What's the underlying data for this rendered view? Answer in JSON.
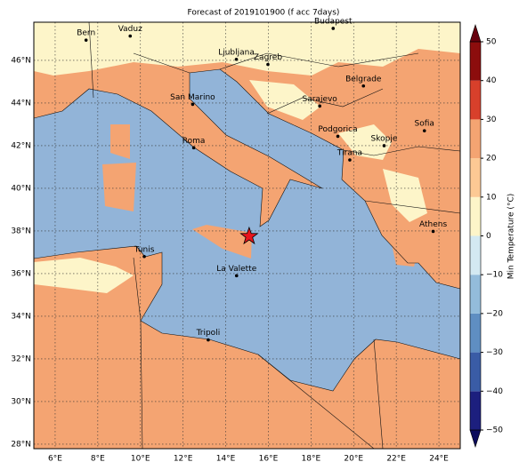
{
  "title": "Forecast of 2019101900 (f acc 7days)",
  "map": {
    "xlim": [
      5,
      25
    ],
    "ylim": [
      27.79,
      47.79
    ],
    "grid": true,
    "land_color": "#f4a472",
    "sea_color": "#92b4d8",
    "cold_land_color": "#fdf5c9",
    "xticks": [
      {
        "value": 6,
        "label": "6°E"
      },
      {
        "value": 8,
        "label": "8°E"
      },
      {
        "value": 10,
        "label": "10°E"
      },
      {
        "value": 12,
        "label": "12°E"
      },
      {
        "value": 14,
        "label": "14°E"
      },
      {
        "value": 16,
        "label": "16°E"
      },
      {
        "value": 18,
        "label": "18°E"
      },
      {
        "value": 20,
        "label": "20°E"
      },
      {
        "value": 22,
        "label": "22°E"
      },
      {
        "value": 24,
        "label": "24°E"
      }
    ],
    "yticks": [
      {
        "value": 28,
        "label": "28°N"
      },
      {
        "value": 30,
        "label": "30°N"
      },
      {
        "value": 32,
        "label": "32°N"
      },
      {
        "value": 34,
        "label": "34°N"
      },
      {
        "value": 36,
        "label": "36°N"
      },
      {
        "value": 38,
        "label": "38°N"
      },
      {
        "value": 40,
        "label": "40°N"
      },
      {
        "value": 42,
        "label": "42°N"
      },
      {
        "value": 44,
        "label": "44°N"
      },
      {
        "value": 46,
        "label": "46°N"
      }
    ]
  },
  "cities": [
    {
      "name": "Bern",
      "lon": 7.45,
      "lat": 46.95
    },
    {
      "name": "Vaduz",
      "lon": 9.52,
      "lat": 47.14
    },
    {
      "name": "Budapest",
      "lon": 19.04,
      "lat": 47.5
    },
    {
      "name": "Ljubljana",
      "lon": 14.5,
      "lat": 46.05
    },
    {
      "name": "Zagreb",
      "lon": 15.98,
      "lat": 45.81
    },
    {
      "name": "Belgrade",
      "lon": 20.46,
      "lat": 44.8
    },
    {
      "name": "San Marino",
      "lon": 12.45,
      "lat": 43.94
    },
    {
      "name": "Sarajevo",
      "lon": 18.41,
      "lat": 43.86
    },
    {
      "name": "Sofia",
      "lon": 23.32,
      "lat": 42.7
    },
    {
      "name": "Podgorica",
      "lon": 19.26,
      "lat": 42.44
    },
    {
      "name": "Skopje",
      "lon": 21.43,
      "lat": 42.0
    },
    {
      "name": "Roma",
      "lon": 12.5,
      "lat": 41.9
    },
    {
      "name": "Tirana",
      "lon": 19.82,
      "lat": 41.33
    },
    {
      "name": "Athens",
      "lon": 23.73,
      "lat": 37.98
    },
    {
      "name": "Tunis",
      "lon": 10.18,
      "lat": 36.8
    },
    {
      "name": "La Valette",
      "lon": 14.51,
      "lat": 35.9
    },
    {
      "name": "Tripoli",
      "lon": 13.18,
      "lat": 32.89
    }
  ],
  "marker": {
    "lon": 15.1,
    "lat": 37.75,
    "color": "#e8141c"
  },
  "colorbar": {
    "label": "Min Temperature (°C)",
    "ticks": [
      {
        "value": -50,
        "label": "−50"
      },
      {
        "value": -40,
        "label": "−40"
      },
      {
        "value": -30,
        "label": "−30"
      },
      {
        "value": -20,
        "label": "−20"
      },
      {
        "value": -10,
        "label": "−10"
      },
      0,
      10,
      20,
      30,
      40,
      50
    ],
    "colors": [
      "#1c1f7e",
      "#3a5ca6",
      "#5f8ec2",
      "#93bcdb",
      "#d3e9f2",
      "#fdf5c9",
      "#fcc994",
      "#f4a472",
      "#d8402b",
      "#8c0d0d"
    ],
    "under_color": "#0b0b5c",
    "over_color": "#67000d"
  }
}
